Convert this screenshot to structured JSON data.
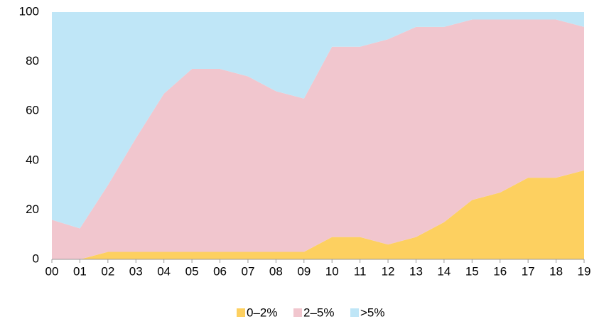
{
  "chart_data": {
    "type": "stacked_area",
    "categories": [
      "00",
      "01",
      "02",
      "03",
      "04",
      "05",
      "06",
      "07",
      "08",
      "09",
      "10",
      "11",
      "12",
      "13",
      "14",
      "15",
      "16",
      "17",
      "18",
      "19"
    ],
    "series": [
      {
        "name": "0–2%",
        "color": "#fdd060",
        "values": [
          0,
          0,
          3,
          3,
          3,
          3,
          3,
          3,
          3,
          3,
          9,
          9,
          6,
          9,
          15,
          24,
          27,
          33,
          33,
          36
        ]
      },
      {
        "name": "2–5%",
        "color": "#f1c6ce",
        "values": [
          16,
          12.5,
          27,
          46,
          64,
          74,
          74,
          71,
          65,
          62,
          77,
          77,
          83,
          85,
          79,
          73,
          70,
          64,
          64,
          58
        ]
      },
      {
        "name": ">5%",
        "color": "#bfe6f7",
        "values": [
          84,
          87.5,
          70,
          51,
          33,
          23,
          23,
          26,
          32,
          35,
          14,
          14,
          11,
          6,
          6,
          3,
          3,
          3,
          3,
          6
        ]
      }
    ],
    "ylim": [
      0,
      100
    ],
    "yticks": [
      0,
      20,
      40,
      60,
      80,
      100
    ],
    "grid": false,
    "legend": "bottom"
  }
}
